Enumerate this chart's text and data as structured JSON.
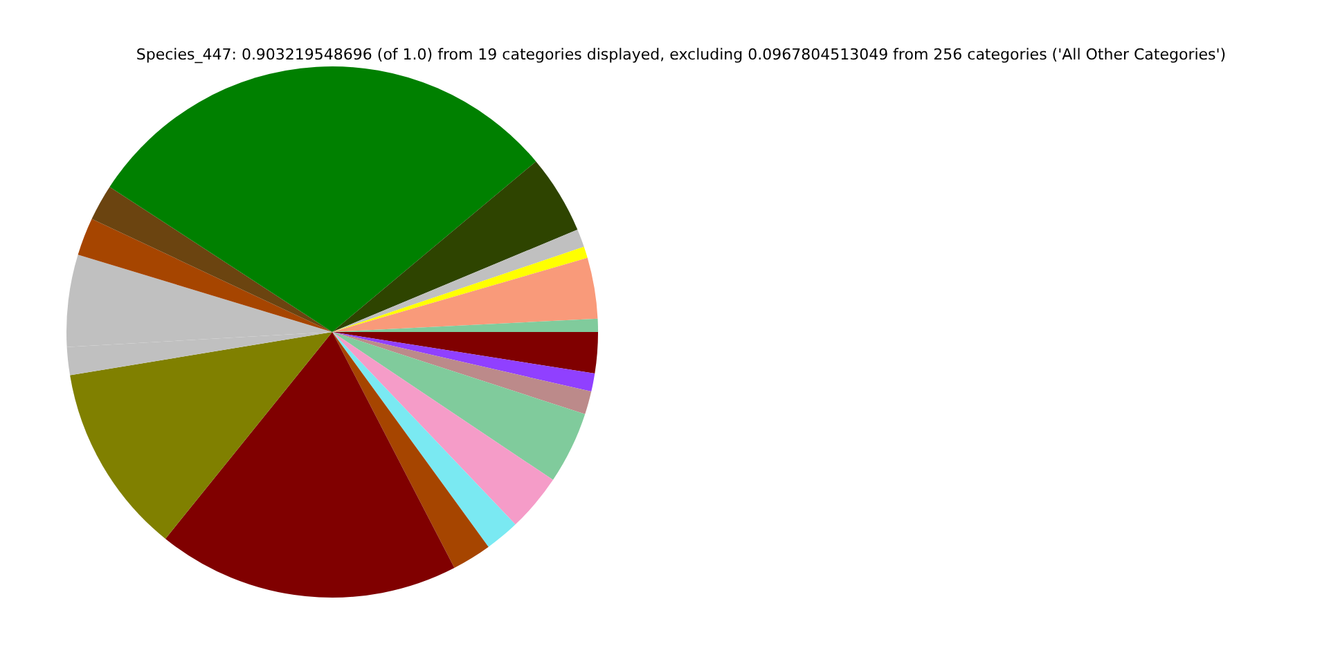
{
  "chart_data": {
    "type": "pie",
    "title": "Species_447: 0.903219548696 (of 1.0) from 19 categories displayed, excluding 0.0967804513049 from 256 categories ('All Other Categories')",
    "categories": [
      null,
      null,
      null,
      null,
      null,
      null,
      null,
      null,
      null,
      null,
      null,
      null,
      null,
      null,
      null,
      null,
      null,
      null,
      null
    ],
    "values": [
      2.5,
      1.1,
      1.4,
      4.4,
      3.5,
      2.1,
      2.4,
      18.4,
      11.6,
      1.7,
      5.6,
      2.3,
      2.2,
      29.7,
      4.8,
      1.1,
      0.7,
      3.7,
      0.8
    ],
    "colors": [
      "#800000",
      "#9040ff",
      "#bc8a8a",
      "#80cb9c",
      "#f59cc8",
      "#7ae9f2",
      "#a64500",
      "#800000",
      "#808000",
      "#c0c0c0",
      "#c0c0c0",
      "#a64500",
      "#6b4410",
      "#008000",
      "#2e4400",
      "#c0c0c0",
      "#ffff00",
      "#f99a7a",
      "#80cb9c"
    ],
    "legend": false
  }
}
